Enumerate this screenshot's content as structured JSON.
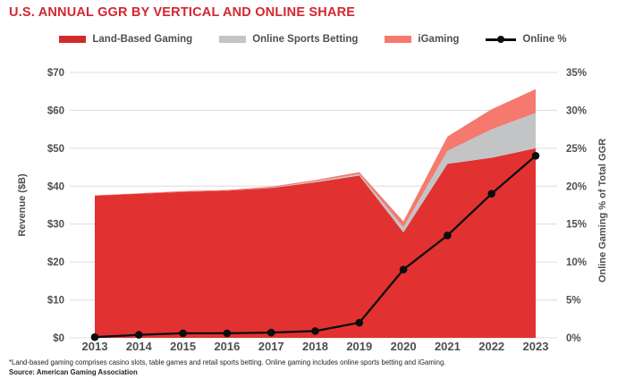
{
  "title": "U.S. ANNUAL GGR BY VERTICAL AND ONLINE SHARE",
  "colors": {
    "title": "#d22731",
    "label_text": "#4e4f51",
    "grid": "#dcdcdc",
    "online_line": "#0d0d0d"
  },
  "legend": {
    "items": [
      {
        "label": "Land-Based Gaming",
        "swatch_color": "#cf2b2c",
        "marker": "area"
      },
      {
        "label": "Online Sports Betting",
        "swatch_color": "#c3c4c6",
        "marker": "area"
      },
      {
        "label": "iGaming",
        "swatch_color": "#f5796d",
        "marker": "area"
      },
      {
        "label": "Online %",
        "swatch_color": "#0d0d0d",
        "marker": "line"
      }
    ]
  },
  "chart_data": {
    "type": "area",
    "stacked": true,
    "grid": true,
    "x": [
      "2013",
      "2014",
      "2015",
      "2016",
      "2017",
      "2018",
      "2019",
      "2020",
      "2021",
      "2022",
      "2023"
    ],
    "series": [
      {
        "name": "Land-Based Gaming",
        "color": "#e13231",
        "values": [
          37.5,
          38.0,
          38.5,
          38.8,
          39.5,
          41.0,
          42.8,
          27.8,
          45.9,
          47.5,
          50.0
        ]
      },
      {
        "name": "Online Sports Betting",
        "color": "#c3c4c6",
        "values": [
          0,
          0,
          0,
          0,
          0.1,
          0.3,
          0.4,
          1.4,
          3.4,
          7.5,
          9.3
        ]
      },
      {
        "name": "iGaming",
        "color": "#f5796d",
        "values": [
          0.1,
          0.1,
          0.2,
          0.2,
          0.25,
          0.3,
          0.5,
          1.5,
          3.8,
          5.3,
          6.3
        ]
      }
    ],
    "line_series": {
      "name": "Online %",
      "color": "#0d0d0d",
      "axis": "right",
      "values": [
        0.1,
        0.4,
        0.6,
        0.6,
        0.7,
        0.9,
        2.0,
        9.0,
        13.5,
        19.0,
        24.0
      ]
    },
    "left_axis": {
      "label": "Revenue ($B)",
      "min": 0,
      "max": 70,
      "ticks": [
        "$0",
        "$10",
        "$20",
        "$30",
        "$40",
        "$50",
        "$60",
        "$70"
      ]
    },
    "right_axis": {
      "label": "Online Gaming % of Total GGR",
      "min": 0,
      "max": 35,
      "ticks": [
        "0%",
        "5%",
        "10%",
        "15%",
        "20%",
        "25%",
        "30%",
        "35%"
      ]
    }
  },
  "footer": {
    "footnote": "*Land-based gaming comprises casino slots, table games and retail sports betting. Online gaming includes online sports betting and iGaming.",
    "source": "Source: American Gaming Association"
  }
}
